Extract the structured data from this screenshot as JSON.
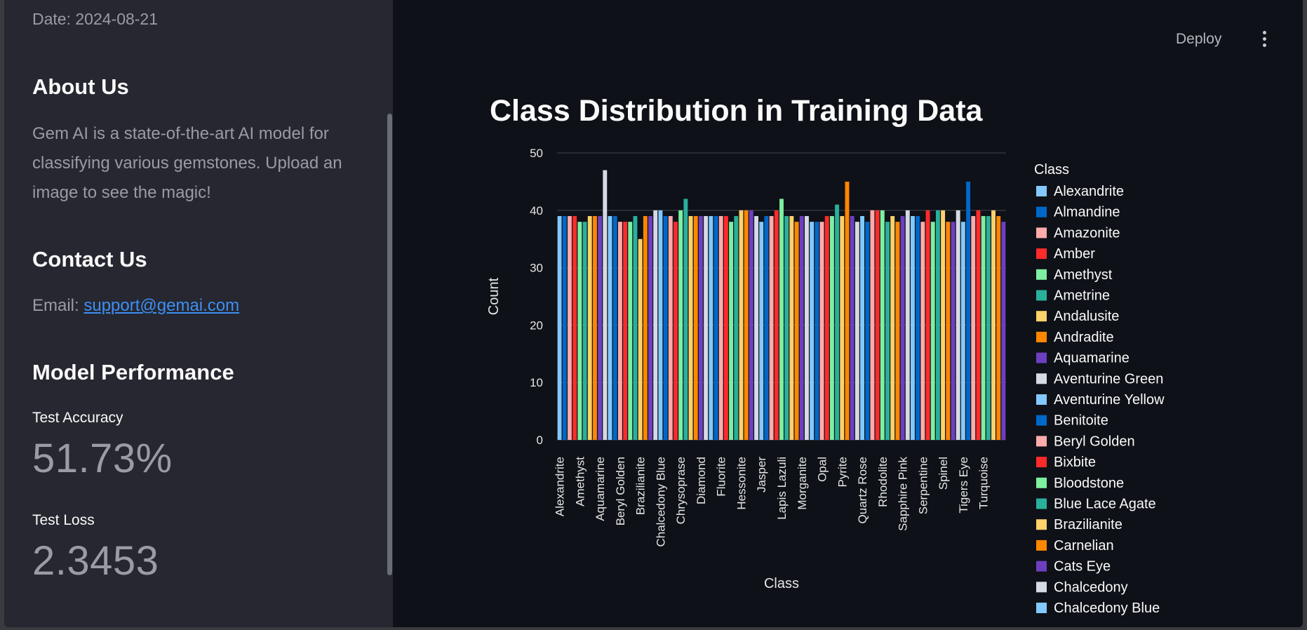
{
  "sidebar": {
    "date": "Date: 2024-08-21",
    "about_title": "About Us",
    "about_text": "Gem AI is a state-of-the-art AI model for classifying various gemstones. Upload an image to see the magic!",
    "contact_title": "Contact Us",
    "email_prefix": "Email: ",
    "email": "support@gemai.com",
    "performance_title": "Model Performance",
    "accuracy_label": "Test Accuracy",
    "accuracy_value": "51.73%",
    "loss_label": "Test Loss",
    "loss_value": "2.3453"
  },
  "header": {
    "deploy_label": "Deploy",
    "menu_icon": "kebab-menu-icon"
  },
  "chart_title": "Class Distribution in Training Data",
  "chart_data": {
    "type": "bar",
    "title": "Class Distribution in Training Data",
    "xlabel": "Class",
    "ylabel": "Count",
    "ylim": [
      0,
      50
    ],
    "yticks": [
      0,
      10,
      20,
      30,
      40,
      50
    ],
    "grid": true,
    "legend_title": "Class",
    "legend_position": "right",
    "palette": [
      "#83c9ff",
      "#0068c9",
      "#ffabab",
      "#ff2b2b",
      "#7defa1",
      "#29b09d",
      "#ffd16a",
      "#ff8700",
      "#6d3fc0",
      "#d5dae5"
    ],
    "x_tick_labels": [
      "Alexandrite",
      "Amethyst",
      "Aquamarine",
      "Beryl Golden",
      "Brazilianite",
      "Chalcedony Blue",
      "Chrysoprase",
      "Diamond",
      "Fluorite",
      "Hessonite",
      "Jasper",
      "Lapis Lazuli",
      "Morganite",
      "Opal",
      "Pyrite",
      "Quartz Rose",
      "Rhodolite",
      "Sapphire Pink",
      "Serpentine",
      "Spinel",
      "Tigers Eye",
      "Turquoise"
    ],
    "legend_visible": [
      "Alexandrite",
      "Almandine",
      "Amazonite",
      "Amber",
      "Amethyst",
      "Ametrine",
      "Andalusite",
      "Andradite",
      "Aquamarine",
      "Aventurine Green",
      "Aventurine Yellow",
      "Benitoite",
      "Beryl Golden",
      "Bixbite",
      "Bloodstone",
      "Blue Lace Agate",
      "Brazilianite",
      "Carnelian",
      "Cats Eye",
      "Chalcedony",
      "Chalcedony Blue"
    ],
    "values": [
      39,
      39,
      39,
      39,
      38,
      38,
      39,
      39,
      39,
      47,
      39,
      39,
      38,
      38,
      38,
      39,
      35,
      39,
      39,
      40,
      40,
      39,
      39,
      38,
      40,
      42,
      39,
      39,
      39,
      39,
      39,
      39,
      39,
      39,
      38,
      39,
      40,
      40,
      40,
      39,
      38,
      39,
      39,
      40,
      42,
      39,
      39,
      38,
      39,
      39,
      38,
      38,
      38,
      39,
      39,
      41,
      39,
      45,
      39,
      38,
      39,
      38,
      40,
      40,
      40,
      38,
      39,
      38,
      39,
      40,
      39,
      39,
      38,
      40,
      38,
      40,
      40,
      38,
      38,
      40,
      38,
      45,
      39,
      40,
      39,
      39,
      40,
      39,
      38
    ]
  }
}
